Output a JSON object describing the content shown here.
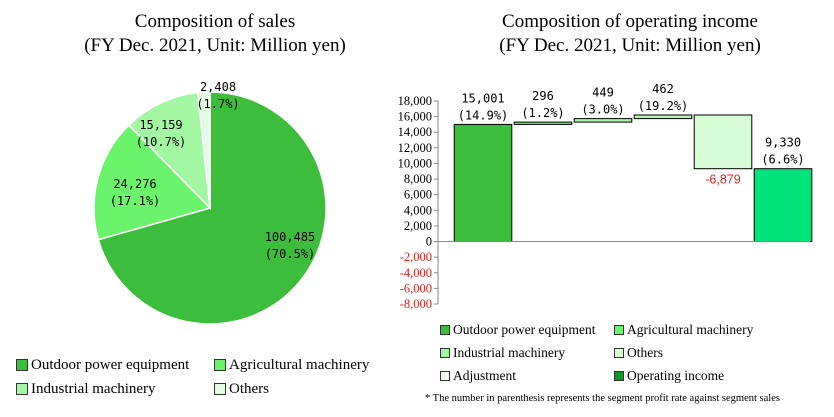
{
  "chart_data": [
    {
      "type": "pie",
      "title": "Composition of sales",
      "subtitle": "(FY Dec. 2021, Unit: Million yen)",
      "slices": [
        {
          "name": "Outdoor power equipment",
          "value": 100485,
          "label": "100,485",
          "pct_label": "(70.5%)",
          "color": "#3cbd3c"
        },
        {
          "name": "Agricultural machinery",
          "value": 24276,
          "label": "24,276",
          "pct_label": "(17.1%)",
          "color": "#6cf36c"
        },
        {
          "name": "Industrial machinery",
          "value": 15159,
          "label": "15,159",
          "pct_label": "(10.7%)",
          "color": "#a3f7a3"
        },
        {
          "name": "Others",
          "value": 2408,
          "label": "2,408",
          "pct_label": "(1.7%)",
          "color": "#e2fbe2"
        }
      ],
      "legend": [
        "Outdoor power equipment",
        "Agricultural machinery",
        "Industrial machinery",
        "Others"
      ]
    },
    {
      "type": "bar",
      "title": "Composition of operating income",
      "subtitle": "(FY Dec. 2021, Unit: Million yen)",
      "ylim": [
        -8000,
        18000
      ],
      "yticks": [
        "18,000",
        "16,000",
        "14,000",
        "12,000",
        "10,000",
        "8,000",
        "6,000",
        "4,000",
        "2,000",
        "0",
        "-2,000",
        "-4,000",
        "-6,000",
        "-8,000"
      ],
      "ytick_values": [
        18000,
        16000,
        14000,
        12000,
        10000,
        8000,
        6000,
        4000,
        2000,
        0,
        -2000,
        -4000,
        -6000,
        -8000
      ],
      "categories": [
        "Outdoor power equipment",
        "Agricultural machinery",
        "Industrial machinery",
        "Others",
        "Adjustment",
        "Operating income"
      ],
      "values": [
        15001,
        296,
        449,
        462,
        -6879,
        9330
      ],
      "labels": [
        "15,001",
        "296",
        "449",
        "462",
        "-6,879",
        "9,330"
      ],
      "pct_labels": [
        "(14.9%)",
        "(1.2%)",
        "(3.0%)",
        "(19.2%)",
        "",
        "(6.6%)"
      ],
      "colors": [
        "#3cbd3c",
        "#6cf36c",
        "#a3f7a3",
        "#b5f5b5",
        "#d5fcd5",
        "#00e27a"
      ],
      "legend_colors": [
        "#3cbd3c",
        "#6cf36c",
        "#a3f7a3",
        "#d5fcd5",
        "#f0fff0",
        "#0a9a2a"
      ],
      "negative_label_color": "#e02020",
      "footnote": "* The number in parenthesis represents the segment profit rate against segment sales"
    }
  ]
}
